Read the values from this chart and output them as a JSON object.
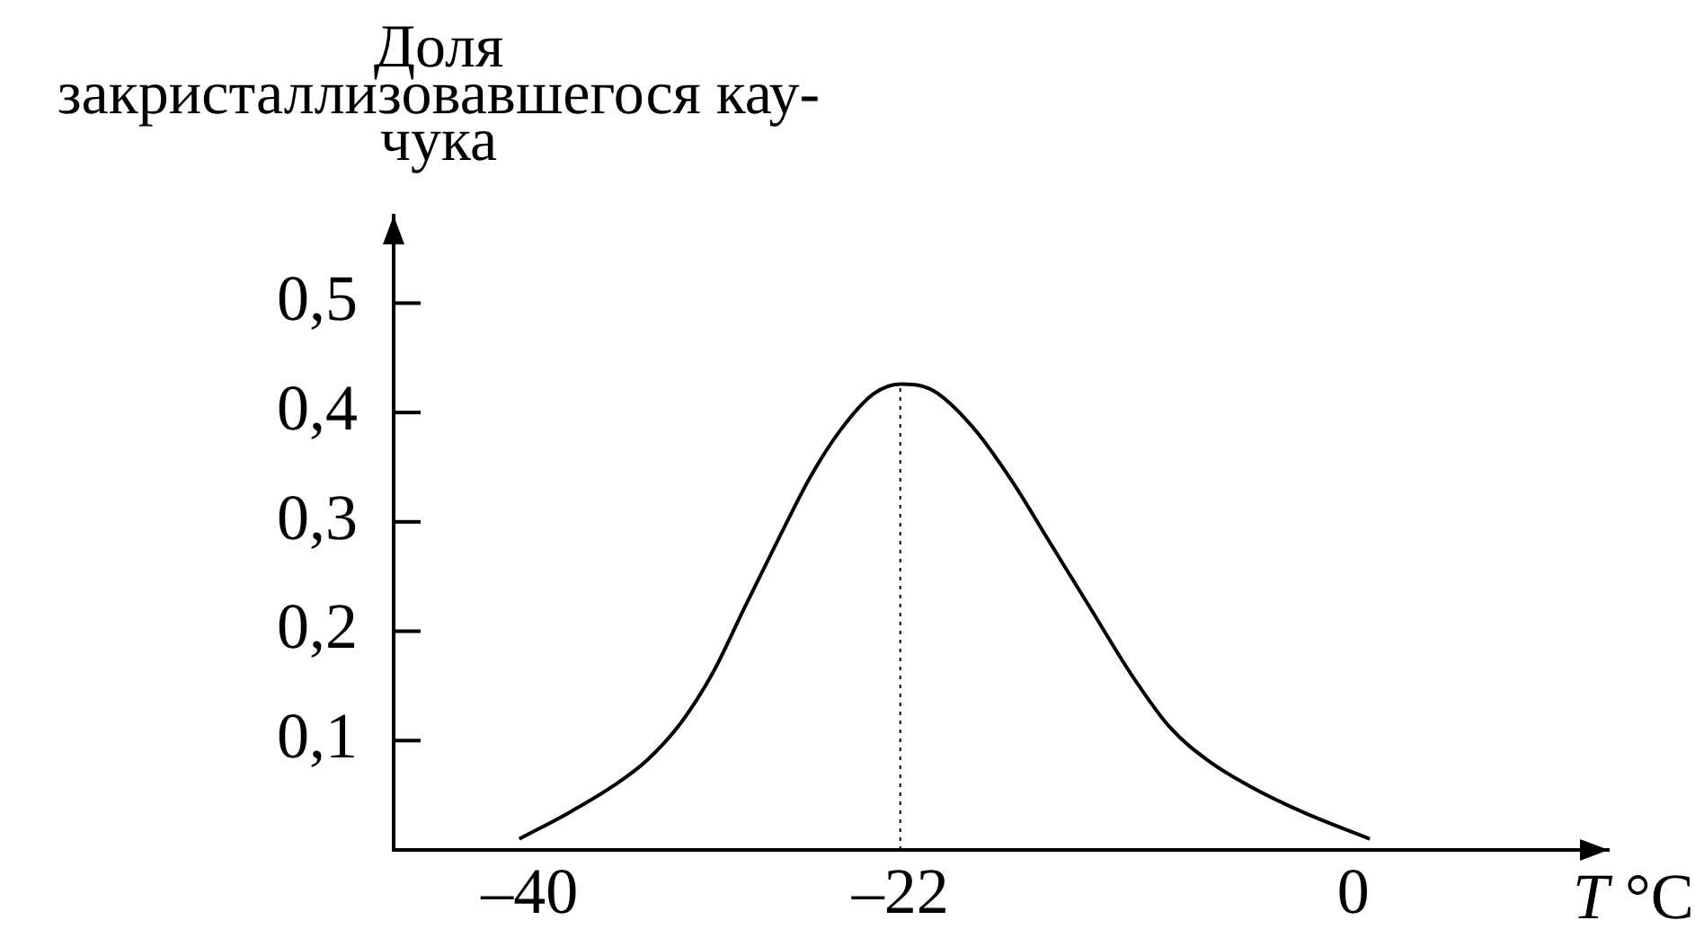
{
  "chart_data": {
    "type": "line",
    "xlabel": "T °C",
    "ylabel": "Доля\nзакристаллизовавшегося кау-\nчука",
    "x": [
      -40.5,
      -38.0,
      -35.9,
      -34.3,
      -32.7,
      -31.1,
      -29.6,
      -28.0,
      -26.4,
      -24.9,
      -23.3,
      -22,
      -20.4,
      -18.5,
      -16.6,
      -14.7,
      -12.8,
      -10.8,
      -8.9,
      -7.0,
      -5.1,
      -2.5,
      0.8
    ],
    "values": [
      0.01,
      0.035,
      0.059,
      0.082,
      0.115,
      0.162,
      0.22,
      0.281,
      0.34,
      0.384,
      0.417,
      0.426,
      0.42,
      0.387,
      0.338,
      0.28,
      0.222,
      0.161,
      0.112,
      0.081,
      0.059,
      0.035,
      0.01
    ],
    "color": "#000000",
    "xlim": [
      -46.6,
      12.4
    ],
    "xticks": [
      {
        "value": -40,
        "label": "–40"
      },
      {
        "value": -22,
        "label": "–22"
      },
      0
    ],
    "ylim": [
      0,
      0.58
    ],
    "yticks": [
      {
        "value": 0.1,
        "label": "0,1"
      },
      {
        "value": 0.2,
        "label": "0,2"
      },
      {
        "value": 0.3,
        "label": "0,3"
      },
      {
        "value": 0.4,
        "label": "0,4"
      },
      {
        "value": 0.5,
        "label": "0,5"
      }
    ],
    "ref_lines": [
      {
        "axis": "x",
        "value": -22,
        "line_style": "dotted",
        "color": "#000000"
      }
    ]
  }
}
